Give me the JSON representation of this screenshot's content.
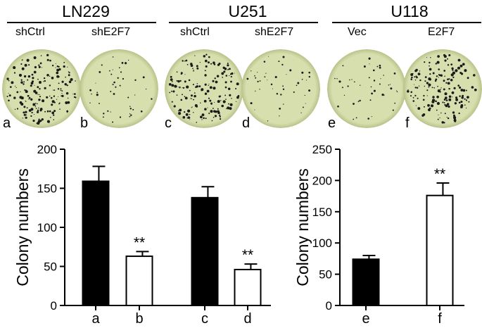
{
  "groups": [
    {
      "title": "LN229",
      "conditions": [
        "shCtrl",
        "shE2F7"
      ]
    },
    {
      "title": "U251",
      "conditions": [
        "shCtrl",
        "shE2F7"
      ]
    },
    {
      "title": "U118",
      "conditions": [
        "Vec",
        "E2F7"
      ]
    }
  ],
  "dishes": [
    {
      "letter": "a",
      "density": "high"
    },
    {
      "letter": "b",
      "density": "low"
    },
    {
      "letter": "c",
      "density": "high"
    },
    {
      "letter": "d",
      "density": "low"
    },
    {
      "letter": "e",
      "density": "low"
    },
    {
      "letter": "f",
      "density": "high"
    }
  ],
  "colors": {
    "dish_fill": "#d8dfae",
    "dish_rim": "#b9c28a",
    "colony": "#1a1a1a",
    "bar_filled": "#000000",
    "bar_open": "#ffffff"
  },
  "chart_data": [
    {
      "type": "bar",
      "categories": [
        "a",
        "b",
        "c",
        "d"
      ],
      "values": [
        159,
        63,
        138,
        46
      ],
      "errors": [
        19,
        6,
        14,
        7
      ],
      "fills": [
        "filled",
        "open",
        "filled",
        "open"
      ],
      "annotations": [
        "",
        "**",
        "",
        "**"
      ],
      "ylabel": "Colony numbers",
      "ylim": [
        0,
        200
      ],
      "yticks": [
        0,
        50,
        100,
        150,
        200
      ]
    },
    {
      "type": "bar",
      "categories": [
        "e",
        "f"
      ],
      "values": [
        74,
        176
      ],
      "errors": [
        6,
        20
      ],
      "fills": [
        "filled",
        "open"
      ],
      "annotations": [
        "",
        "**"
      ],
      "ylabel": "Colony numbers",
      "ylim": [
        0,
        250
      ],
      "yticks": [
        0,
        50,
        100,
        150,
        200,
        250
      ]
    }
  ]
}
